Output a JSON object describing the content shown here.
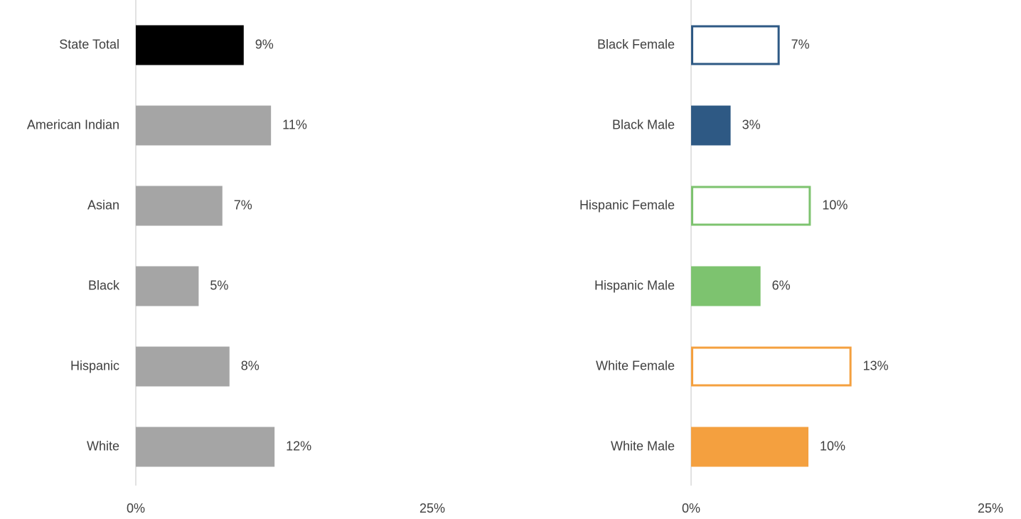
{
  "chart_data": [
    {
      "type": "hbar",
      "categories": [
        "State Total",
        "American Indian",
        "Asian",
        "Black",
        "Hispanic",
        "White"
      ],
      "values": [
        9.1,
        11.4,
        7.3,
        5.3,
        7.9,
        11.7
      ],
      "value_labels": [
        "9%",
        "11%",
        "7%",
        "5%",
        "8%",
        "12%"
      ],
      "colors": [
        "#000000",
        "#a5a5a5",
        "#a5a5a5",
        "#a5a5a5",
        "#a5a5a5",
        "#a5a5a5"
      ],
      "styles": [
        "filled",
        "filled",
        "filled",
        "filled",
        "filled",
        "filled"
      ],
      "xlim": [
        0,
        25
      ],
      "xticks": [
        {
          "value": 0,
          "label": "0%"
        },
        {
          "value": 25,
          "label": "25%"
        }
      ]
    },
    {
      "type": "hbar",
      "categories": [
        "Black Female",
        "Black Male",
        "Hispanic Female",
        "Hispanic Male",
        "White Female",
        "White Male"
      ],
      "values": [
        7.4,
        3.3,
        10.0,
        5.8,
        13.4,
        9.8
      ],
      "value_labels": [
        "7%",
        "3%",
        "10%",
        "6%",
        "13%",
        "10%"
      ],
      "colors": [
        "#2e5984",
        "#2e5984",
        "#7dc36f",
        "#7dc36f",
        "#f4a03f",
        "#f4a03f"
      ],
      "styles": [
        "outline",
        "filled",
        "outline",
        "filled",
        "outline",
        "filled"
      ],
      "xlim": [
        0,
        25
      ],
      "xticks": [
        {
          "value": 0,
          "label": "0%"
        },
        {
          "value": 25,
          "label": "25%"
        }
      ]
    }
  ]
}
